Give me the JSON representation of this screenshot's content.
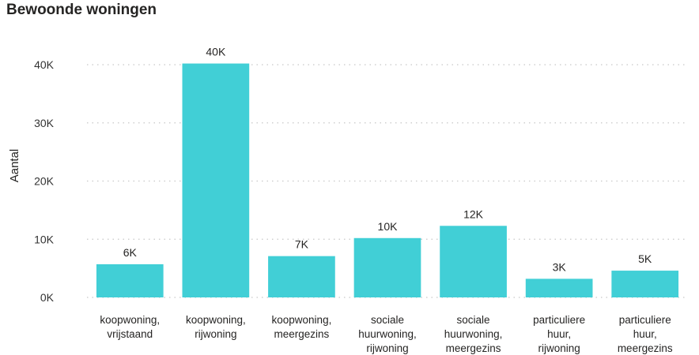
{
  "chart_data": {
    "type": "bar",
    "title": "Bewoonde woningen",
    "ylabel": "Aantal",
    "xlabel": "",
    "ylim": [
      0,
      40000
    ],
    "grid": true,
    "y_ticks": [
      0,
      10000,
      20000,
      30000,
      40000
    ],
    "y_tick_labels": [
      "0K",
      "10K",
      "20K",
      "30K",
      "40K"
    ],
    "categories": [
      [
        "koopwoning,",
        "vrijstaand"
      ],
      [
        "koopwoning,",
        "rijwoning"
      ],
      [
        "koopwoning,",
        "meergezins"
      ],
      [
        "sociale",
        "huurwoning,",
        "rijwoning"
      ],
      [
        "sociale",
        "huurwoning,",
        "meergezins"
      ],
      [
        "particuliere",
        "huur,",
        "rijwoning"
      ],
      [
        "particuliere",
        "huur,",
        "meergezins"
      ]
    ],
    "values": [
      5700,
      40200,
      7100,
      10200,
      12300,
      3200,
      4600
    ],
    "data_labels": [
      "6K",
      "40K",
      "7K",
      "10K",
      "12K",
      "3K",
      "5K"
    ],
    "colors": {
      "bar": "#41CFD6",
      "grid": "#c8c8c8"
    }
  }
}
